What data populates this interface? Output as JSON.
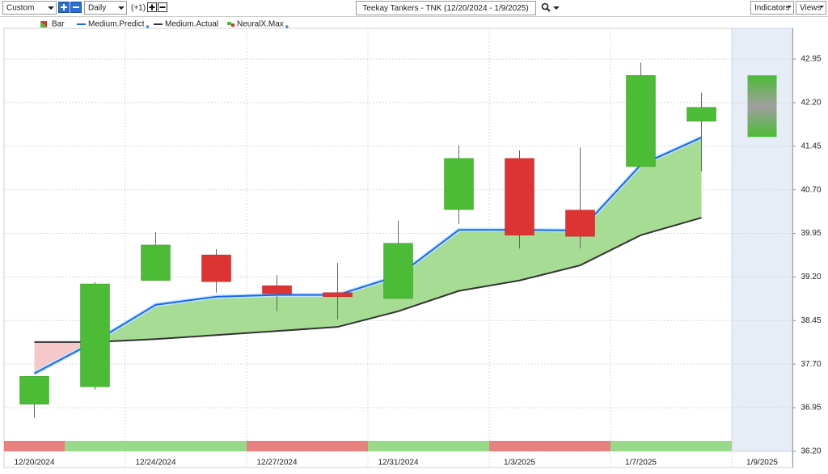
{
  "toolbar": {
    "period": "Custom",
    "interval": "Daily",
    "offset": "(+1)",
    "indicators": "Indicators",
    "views": "Views"
  },
  "chart_data": {
    "type": "candlestick",
    "title": "Teekay Tankers - TNK (12/20/2024 - 1/9/2025)",
    "categories": [
      "12/20/2024",
      null,
      "12/24/2024",
      null,
      "12/27/2024",
      null,
      "12/31/2024",
      null,
      "1/3/2025",
      null,
      "1/7/2025",
      null,
      "1/9/2025"
    ],
    "bar_name": "Bar",
    "open": [
      37.01,
      37.31,
      39.14,
      39.58,
      39.05,
      38.93,
      38.83,
      40.36,
      41.24,
      40.35,
      41.1,
      41.88,
      null
    ],
    "high": [
      37.49,
      39.11,
      39.97,
      39.68,
      39.23,
      39.44,
      40.17,
      41.46,
      41.38,
      41.43,
      42.89,
      42.37,
      null
    ],
    "low": [
      36.78,
      37.26,
      39.14,
      38.93,
      38.61,
      38.47,
      38.83,
      40.11,
      39.69,
      39.69,
      41.1,
      41.02,
      null
    ],
    "close": [
      37.49,
      39.08,
      39.75,
      39.12,
      38.91,
      38.86,
      39.78,
      41.24,
      39.92,
      39.9,
      42.67,
      42.12,
      null
    ],
    "up_color": "#4cbb35",
    "down_color": "#dd3333",
    "series": [
      {
        "name": "Medium.Predict",
        "color": "#1a66e8",
        "values": [
          37.54,
          38.09,
          38.72,
          38.86,
          38.89,
          38.89,
          39.22,
          40.01,
          40.01,
          40.0,
          41.13,
          41.6,
          null
        ]
      },
      {
        "name": "Medium.Actual",
        "color": "#333333",
        "values": [
          38.08,
          38.08,
          38.13,
          38.2,
          38.27,
          38.34,
          38.61,
          38.96,
          39.14,
          39.4,
          39.92,
          40.22,
          null
        ]
      }
    ],
    "fill_up": "#a6dc93",
    "fill_down": "#f5c9c9",
    "forecast": {
      "name": "NeuralX.Max",
      "high": [
        null,
        null,
        null,
        null,
        null,
        null,
        null,
        null,
        null,
        null,
        null,
        null,
        42.67
      ],
      "low": [
        null,
        null,
        null,
        null,
        null,
        null,
        null,
        null,
        null,
        null,
        null,
        null,
        41.61
      ]
    },
    "signal_colors": [
      "#e88080",
      "#99d98a",
      "#99d98a",
      "#99d98a",
      "#e88080",
      "#e88080",
      "#99d98a",
      "#99d98a",
      "#e88080",
      "#e88080",
      "#99d98a",
      "#99d98a",
      null
    ],
    "ylim": [
      35.92,
      43.48
    ],
    "yticks": [
      {
        "value": 36.2,
        "label": "36.20"
      },
      36.95,
      {
        "value": 37.7,
        "label": "37.70"
      },
      38.45,
      {
        "value": 39.2,
        "label": "39.20"
      },
      39.95,
      {
        "value": 40.7,
        "label": "40.70"
      },
      41.45,
      {
        "value": 42.2,
        "label": "42.20"
      },
      42.95
    ],
    "grid": true
  }
}
